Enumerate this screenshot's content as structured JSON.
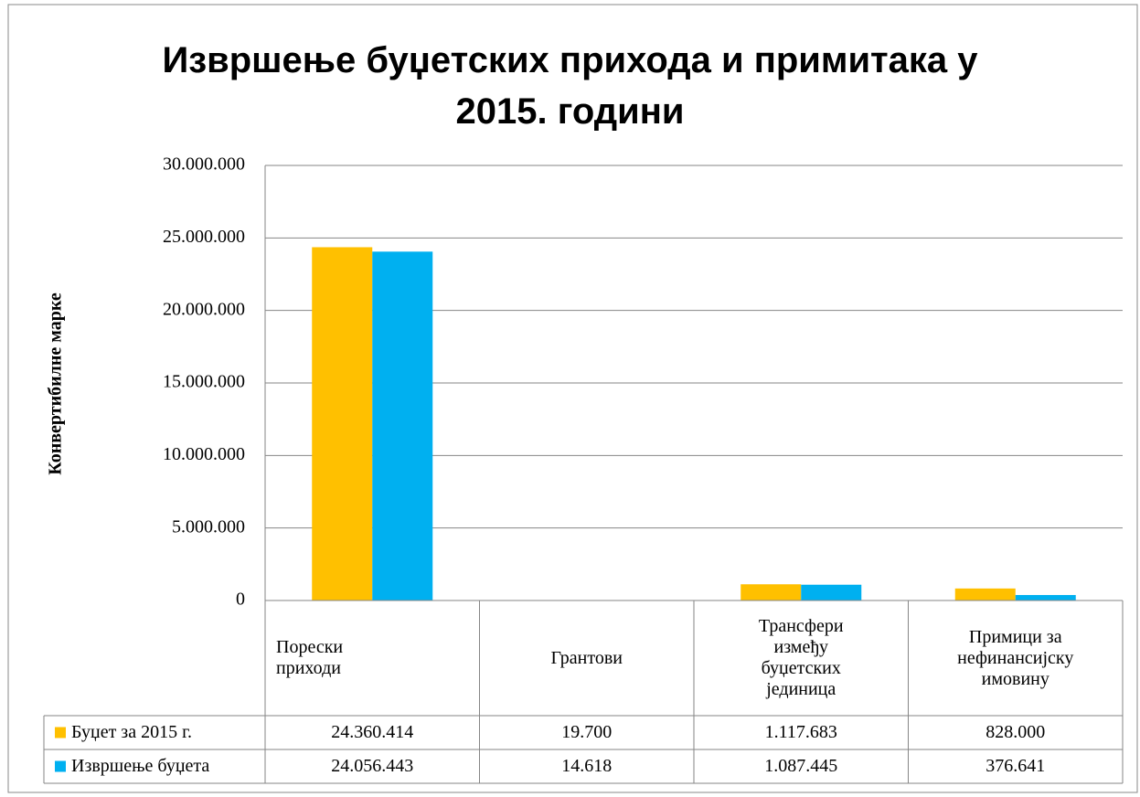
{
  "chart_data": {
    "type": "bar",
    "title": "Извршење буџетских прихода и примитака у\n2015. години",
    "y_label": "Конвертибилне марке",
    "categories": [
      "Порески\nприходи",
      "Грантови",
      "Трансфери\nизмеђу\nбуџетских\nјединица",
      "Примици   за\nнефинансијску\nимовину"
    ],
    "series": [
      {
        "name": "Буџет за 2015 г.",
        "color": "#FFC000",
        "values": [
          24360414,
          19700,
          1117683,
          828000
        ],
        "value_labels": [
          "24.360.414",
          "19.700",
          "1.117.683",
          "828.000"
        ]
      },
      {
        "name": "Извршење буџета",
        "color": "#00B0F0",
        "values": [
          24056443,
          14618,
          1087445,
          376641
        ],
        "value_labels": [
          "24.056.443",
          "14.618",
          "1.087.445",
          "376.641"
        ]
      }
    ],
    "ylim": [
      0,
      30000000
    ],
    "yticks": [
      0,
      {
        "value": 5000000,
        "label": "5.000.000"
      },
      {
        "value": 10000000,
        "label": "10.000.000"
      },
      {
        "value": 15000000,
        "label": "15.000.000"
      },
      {
        "value": 20000000,
        "label": "20.000.000"
      },
      {
        "value": 25000000,
        "label": "25.000.000"
      },
      {
        "value": 30000000,
        "label": "30.000.000"
      }
    ],
    "grid": true,
    "data_table": true
  }
}
